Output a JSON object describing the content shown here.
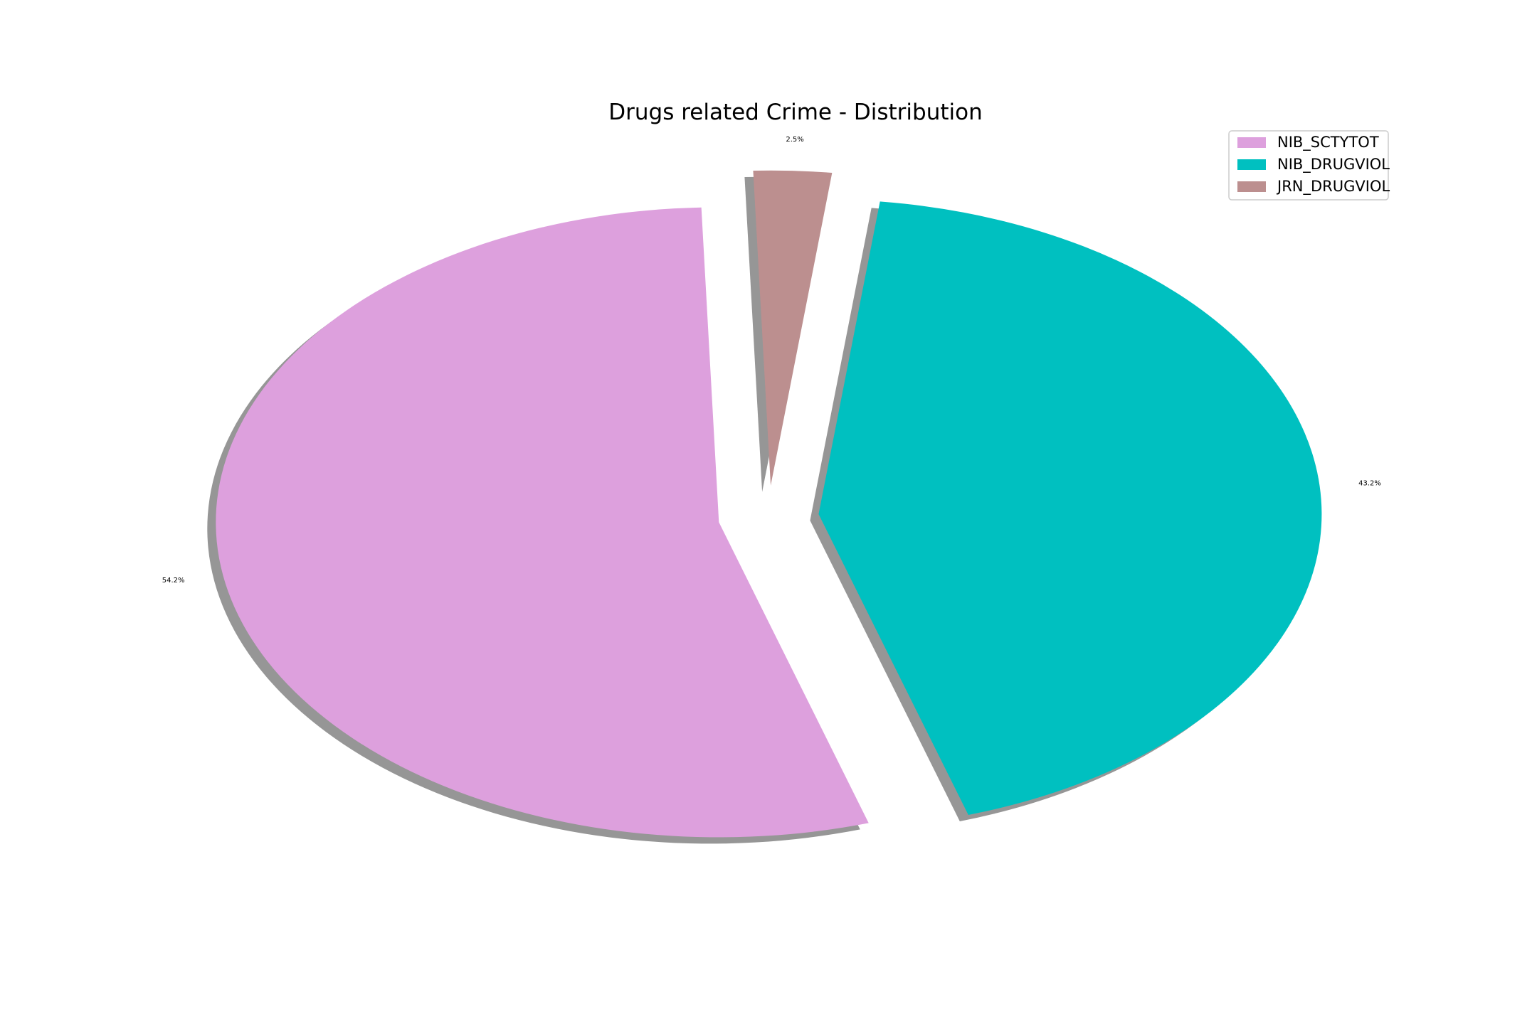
{
  "chart_data": {
    "type": "pie",
    "title": "Drugs related Crime - Distribution",
    "labels": [
      "NIB_SCTYTOT",
      "NIB_DRUGVIOL",
      "JRN_DRUGVIOL"
    ],
    "values": [
      54.2,
      43.2,
      2.5
    ],
    "value_labels": [
      "54.2%",
      "43.2%",
      "2.5%"
    ],
    "colors": [
      "#dda0dd",
      "#00c0c0",
      "#bc8f8f"
    ],
    "explode": true,
    "shadow": true,
    "legend": "top-right"
  }
}
